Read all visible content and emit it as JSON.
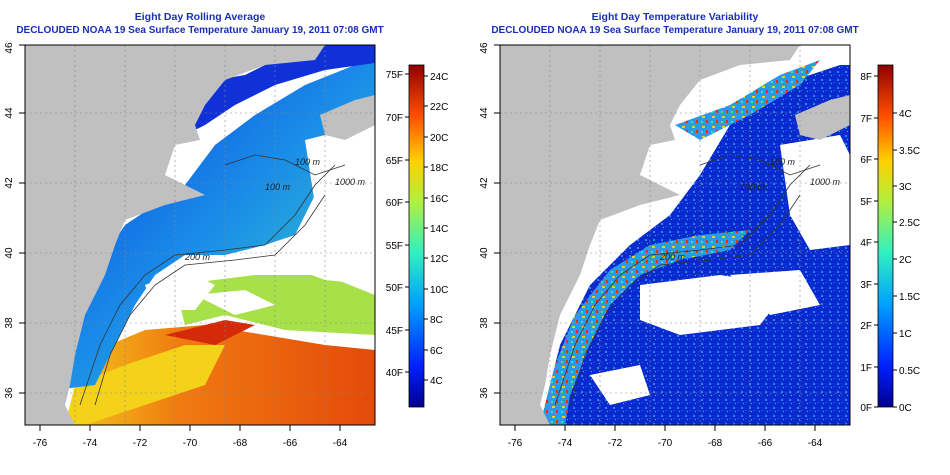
{
  "panels": [
    {
      "id": "average",
      "title": "Eight Day Rolling Average",
      "subtitle": "DECLOUDED NOAA 19 Sea Surface Temperature January 19, 2011 07:08 GMT",
      "colorbar": {
        "left_labels": [
          "75F",
          "70F",
          "65F",
          "60F",
          "55F",
          "50F",
          "45F",
          "40F"
        ],
        "right_labels": [
          "24C",
          "22C",
          "20C",
          "18C",
          "16C",
          "14C",
          "12C",
          "10C",
          "8C",
          "6C",
          "4C"
        ]
      },
      "contour_labels": [
        "100 m",
        "1000 m",
        "100 m",
        "200 m"
      ]
    },
    {
      "id": "variability",
      "title": "Eight Day Temperature Variability",
      "subtitle": "DECLOUDED NOAA 19 Sea Surface Temperature January 19, 2011 07:08 GMT",
      "colorbar": {
        "left_labels": [
          "8F",
          "7F",
          "6F",
          "5F",
          "4F",
          "3F",
          "2F",
          "1F",
          "0F"
        ],
        "right_labels": [
          "4C",
          "3.5C",
          "3C",
          "2.5C",
          "2C",
          "1.5C",
          "1C",
          "0.5C",
          "0C"
        ]
      },
      "contour_labels": [
        "100 m",
        "1000 m",
        "100 m",
        "200 m"
      ]
    }
  ],
  "axes": {
    "x_ticks": [
      "-76",
      "-74",
      "-72",
      "-70",
      "-68",
      "-66",
      "-64"
    ],
    "y_ticks": [
      "36",
      "38",
      "40",
      "42",
      "44",
      "46"
    ]
  },
  "colors": {
    "title": "#1a2fb8",
    "land": "#c0c0c0",
    "cloud": "#ffffff"
  }
}
